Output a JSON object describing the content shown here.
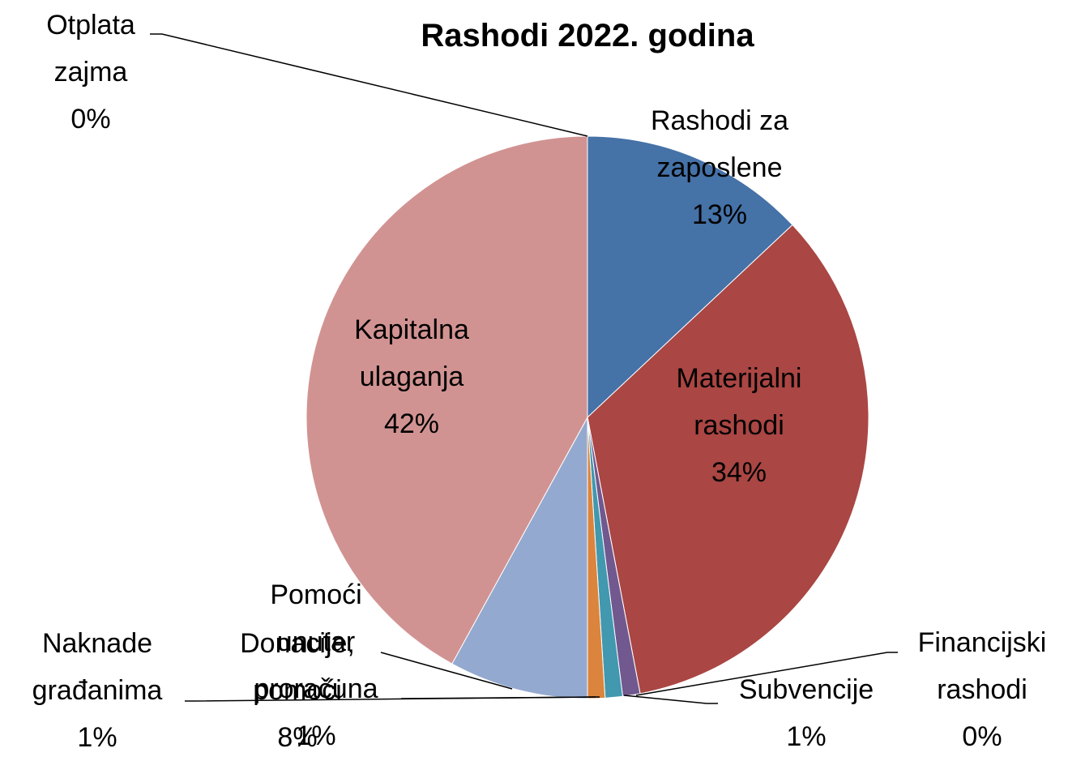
{
  "chart_data": {
    "type": "pie",
    "title": "Rashodi 2022. godina",
    "categories": [
      "Rashodi za zaposlene",
      "Materijalni rashodi",
      "Financijski rashodi",
      "Subvencije",
      "Pomoći unutar proračuna",
      "Naknade građanima",
      "Donacije, pomoći",
      "Kapitalna ulaganja",
      "Otplata zajma"
    ],
    "values": [
      13,
      34,
      0,
      1,
      1,
      1,
      8,
      42,
      0
    ],
    "value_labels": [
      "13%",
      "34%",
      "0%",
      "1%",
      "1%",
      "1%",
      "8%",
      "42%",
      "0%"
    ],
    "colors": [
      "#4572a7",
      "#aa4643",
      "#89a54e",
      "#71588f",
      "#4198af",
      "#db843d",
      "#93a9cf",
      "#d19392",
      "#b9cd96"
    ]
  }
}
